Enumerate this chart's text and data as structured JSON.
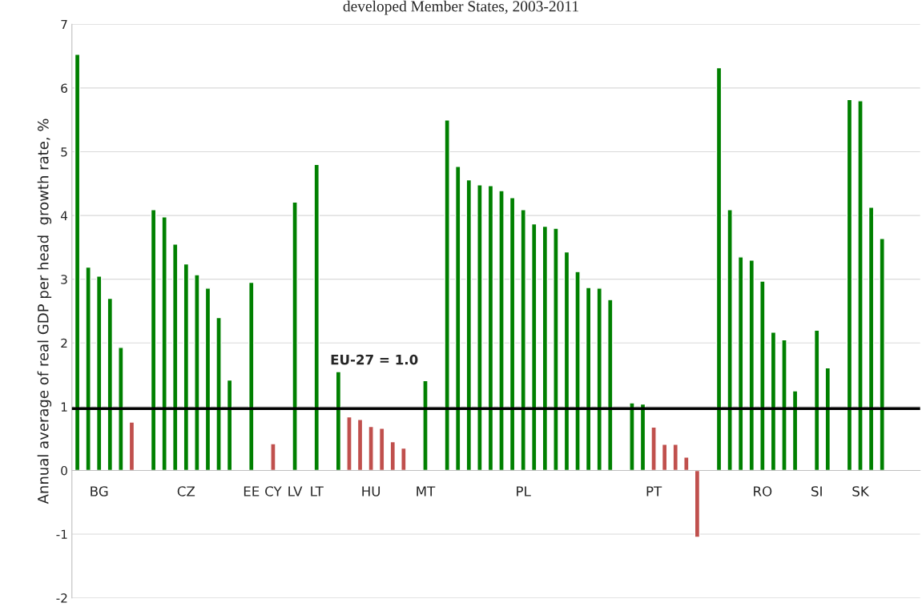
{
  "chart_data": {
    "type": "bar",
    "title": "developed Member States, 2003-2011",
    "ylabel": "Annual average of real GDP per head  growth rate, %",
    "categories": [
      null,
      null,
      "BG",
      null,
      null,
      null,
      null,
      null,
      null,
      null,
      "CZ",
      null,
      null,
      null,
      null,
      null,
      "EE",
      null,
      "CY",
      null,
      "LV",
      null,
      "LT",
      null,
      null,
      null,
      null,
      "HU",
      null,
      null,
      null,
      null,
      "MT",
      null,
      null,
      null,
      null,
      null,
      null,
      null,
      null,
      "PL",
      null,
      null,
      null,
      null,
      null,
      null,
      null,
      null,
      null,
      null,
      null,
      "PT",
      null,
      null,
      null,
      null,
      null,
      null,
      null,
      null,
      null,
      "RO",
      null,
      null,
      null,
      null,
      "SI",
      null,
      null,
      null,
      "SK",
      null,
      null,
      null,
      null,
      null
    ],
    "values": [
      6.53,
      3.19,
      3.05,
      2.7,
      1.93,
      0.76,
      null,
      4.09,
      3.98,
      3.55,
      3.24,
      3.07,
      2.86,
      2.4,
      1.42,
      null,
      2.95,
      null,
      0.42,
      null,
      4.21,
      null,
      4.8,
      null,
      1.55,
      0.84,
      0.8,
      0.69,
      0.66,
      0.45,
      0.35,
      null,
      1.41,
      null,
      5.5,
      4.77,
      4.56,
      4.48,
      4.47,
      4.39,
      4.28,
      4.09,
      3.87,
      3.83,
      3.8,
      3.43,
      3.12,
      2.87,
      2.86,
      2.68,
      null,
      1.06,
      1.04,
      0.68,
      0.41,
      0.41,
      0.21,
      -1.05,
      null,
      6.32,
      4.09,
      3.35,
      3.3,
      2.97,
      2.17,
      2.05,
      1.25,
      null,
      2.2,
      1.61,
      null,
      5.82,
      5.8,
      4.13,
      3.64,
      null,
      null,
      null
    ],
    "colors": [
      "#008000",
      "#008000",
      "#008000",
      "#008000",
      "#008000",
      "#c0504d",
      null,
      "#008000",
      "#008000",
      "#008000",
      "#008000",
      "#008000",
      "#008000",
      "#008000",
      "#008000",
      null,
      "#008000",
      null,
      "#c0504d",
      null,
      "#008000",
      null,
      "#008000",
      null,
      "#008000",
      "#c0504d",
      "#c0504d",
      "#c0504d",
      "#c0504d",
      "#c0504d",
      "#c0504d",
      null,
      "#008000",
      null,
      "#008000",
      "#008000",
      "#008000",
      "#008000",
      "#008000",
      "#008000",
      "#008000",
      "#008000",
      "#008000",
      "#008000",
      "#008000",
      "#008000",
      "#008000",
      "#008000",
      "#008000",
      "#008000",
      null,
      "#008000",
      "#008000",
      "#c0504d",
      "#c0504d",
      "#c0504d",
      "#c0504d",
      "#c0504d",
      null,
      "#008000",
      "#008000",
      "#008000",
      "#008000",
      "#008000",
      "#008000",
      "#008000",
      "#008000",
      null,
      "#008000",
      "#008000",
      null,
      "#008000",
      "#008000",
      "#008000",
      "#008000",
      null,
      null,
      null
    ],
    "ylim": [
      -2,
      7
    ],
    "yticks": [
      -2,
      -1,
      0,
      1,
      2,
      3,
      4,
      5,
      6,
      7
    ],
    "grid": "y",
    "ref_lines": [
      {
        "axis": "y",
        "value": 0.97,
        "label": "EU-27 = 1.0",
        "color": "#000000"
      }
    ]
  }
}
